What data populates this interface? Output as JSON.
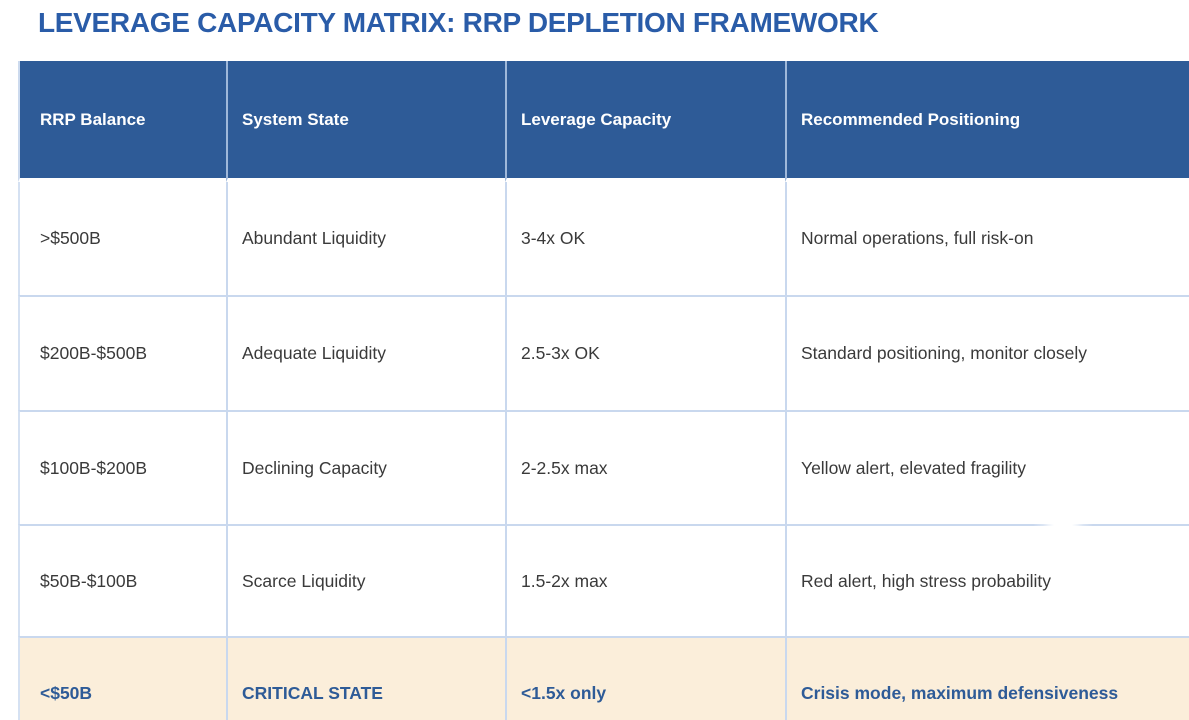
{
  "page_title": "LEVERAGE CAPACITY MATRIX: RRP DEPLETION FRAMEWORK",
  "colors": {
    "title_text": "#2A5CA8",
    "header_bg": "#2E5B97",
    "header_text": "#FFFFFF",
    "grid_line": "#C9D8EE",
    "body_text": "#3A3A3A",
    "critical_row_bg": "#FBEEDA",
    "critical_row_text": "#2E5B97"
  },
  "table": {
    "columns": [
      "RRP Balance",
      "System State",
      "Leverage Capacity",
      "Recommended Positioning"
    ],
    "rows": [
      {
        "critical": false,
        "cells": [
          ">$500B",
          "Abundant Liquidity",
          "3-4x OK",
          "Normal operations, full risk-on"
        ]
      },
      {
        "critical": false,
        "cells": [
          "$200B-$500B",
          "Adequate Liquidity",
          "2.5-3x OK",
          "Standard positioning, monitor closely"
        ]
      },
      {
        "critical": false,
        "cells": [
          "$100B-$200B",
          "Declining Capacity",
          "2-2.5x max",
          "Yellow alert, elevated fragility"
        ]
      },
      {
        "critical": false,
        "cells": [
          "$50B-$100B",
          "Scarce Liquidity",
          "1.5-2x max",
          "Red alert, high stress probability"
        ]
      },
      {
        "critical": true,
        "cells": [
          "<$50B",
          "CRITICAL STATE",
          "<1.5x only",
          "Crisis mode, maximum defensiveness"
        ]
      }
    ]
  }
}
